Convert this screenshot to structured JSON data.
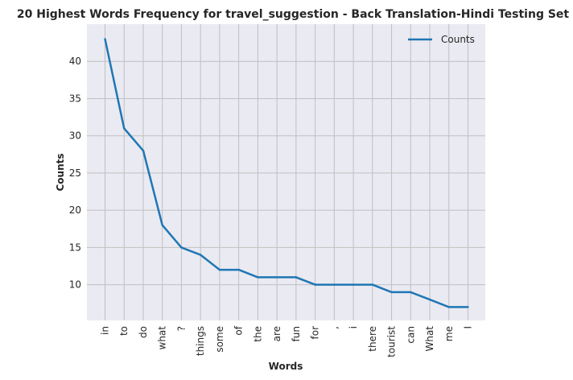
{
  "chart_data": {
    "type": "line",
    "title": "20 Highest Words Frequency for travel_suggestion - Back Translation-Hindi Testing Set",
    "xlabel": "Words",
    "ylabel": "Counts",
    "categories": [
      "in",
      "to",
      "do",
      "what",
      "?",
      "things",
      "some",
      "of",
      "the",
      "are",
      "fun",
      "for",
      ",",
      "i",
      "there",
      "tourist",
      "can",
      "What",
      "me",
      "I"
    ],
    "series": [
      {
        "name": "Counts",
        "values": [
          43,
          31,
          28,
          18,
          15,
          14,
          12,
          12,
          11,
          11,
          11,
          10,
          10,
          10,
          10,
          9,
          9,
          8,
          7,
          7
        ]
      }
    ],
    "ylim": [
      5.2,
      45.0
    ],
    "yticks": [
      10,
      15,
      20,
      25,
      30,
      35,
      40
    ],
    "grid": true,
    "legend_position": "top-right",
    "colors": {
      "line": "#1f77b4",
      "plot_bg": "#eaeaf2",
      "grid": "#c0c0c0"
    }
  }
}
